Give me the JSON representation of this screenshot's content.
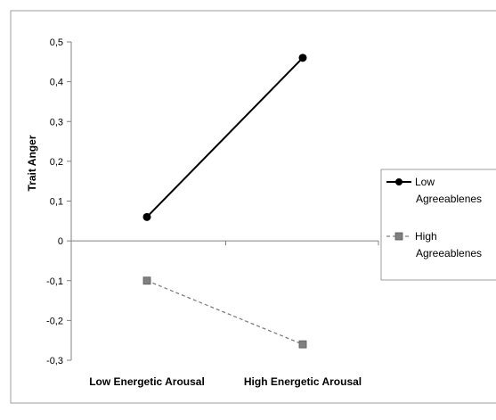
{
  "chart_data": {
    "type": "line",
    "title": "",
    "xlabel": "",
    "ylabel": "Trait Anger",
    "categories": [
      "Low Energetic Arousal",
      "High Energetic Arousal"
    ],
    "ylim": [
      -0.3,
      0.5
    ],
    "yticks": [
      0.5,
      0.4,
      0.3,
      0.2,
      0.1,
      0,
      -0.1,
      -0.2,
      -0.3
    ],
    "ytick_labels": [
      "0,5",
      "0,4",
      "0,3",
      "0,2",
      "0,1",
      "0",
      "-0,1",
      "-0,2",
      "-0,3"
    ],
    "grid": false,
    "legend_position": "right",
    "series": [
      {
        "name_lines": [
          "Low",
          "Agreeablenes"
        ],
        "values": [
          0.06,
          0.46
        ],
        "color": "#000000",
        "marker": "circle",
        "line_style": "solid"
      },
      {
        "name_lines": [
          "High",
          "Agreeablenes"
        ],
        "values": [
          -0.1,
          -0.26
        ],
        "color": "#7f7f7f",
        "marker": "square",
        "line_style": "dashed"
      }
    ]
  }
}
